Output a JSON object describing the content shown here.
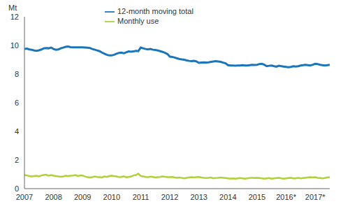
{
  "chart_data": {
    "type": "line",
    "y_label": "Mt",
    "categories": [
      "2007",
      null,
      null,
      null,
      null,
      null,
      null,
      null,
      null,
      null,
      null,
      null,
      "2008",
      null,
      null,
      null,
      null,
      null,
      null,
      null,
      null,
      null,
      null,
      null,
      "2009",
      null,
      null,
      null,
      null,
      null,
      null,
      null,
      null,
      null,
      null,
      null,
      "2010",
      null,
      null,
      null,
      null,
      null,
      null,
      null,
      null,
      null,
      null,
      null,
      "2011",
      null,
      null,
      null,
      null,
      null,
      null,
      null,
      null,
      null,
      null,
      null,
      "2012",
      null,
      null,
      null,
      null,
      null,
      null,
      null,
      null,
      null,
      null,
      null,
      "2013",
      null,
      null,
      null,
      null,
      null,
      null,
      null,
      null,
      null,
      null,
      null,
      "2014",
      null,
      null,
      null,
      null,
      null,
      null,
      null,
      null,
      null,
      null,
      null,
      "2015",
      null,
      null,
      null,
      null,
      null,
      null,
      null,
      null,
      null,
      null,
      null,
      "2016*",
      null,
      null,
      null,
      null,
      null,
      null,
      null,
      null,
      null,
      null,
      null,
      "2017*",
      null,
      null,
      null,
      null,
      null,
      null
    ],
    "series": [
      {
        "name": "12-month moving total",
        "color": "#1b75bb",
        "values": [
          9.75,
          9.78,
          9.72,
          9.7,
          9.65,
          9.62,
          9.66,
          9.72,
          9.8,
          9.82,
          9.8,
          9.85,
          9.75,
          9.7,
          9.72,
          9.8,
          9.85,
          9.9,
          9.92,
          9.88,
          9.86,
          9.86,
          9.87,
          9.86,
          9.86,
          9.85,
          9.84,
          9.82,
          9.75,
          9.7,
          9.65,
          9.6,
          9.5,
          9.42,
          9.35,
          9.3,
          9.3,
          9.35,
          9.42,
          9.48,
          9.5,
          9.45,
          9.52,
          9.58,
          9.56,
          9.58,
          9.62,
          9.6,
          9.85,
          9.8,
          9.75,
          9.72,
          9.75,
          9.7,
          9.68,
          9.65,
          9.6,
          9.55,
          9.48,
          9.4,
          9.22,
          9.2,
          9.15,
          9.1,
          9.05,
          9.02,
          9.0,
          8.95,
          8.92,
          8.9,
          8.92,
          8.88,
          8.78,
          8.8,
          8.82,
          8.8,
          8.82,
          8.85,
          8.88,
          8.9,
          8.88,
          8.85,
          8.8,
          8.75,
          8.62,
          8.6,
          8.6,
          8.58,
          8.6,
          8.6,
          8.62,
          8.6,
          8.6,
          8.62,
          8.65,
          8.63,
          8.65,
          8.7,
          8.72,
          8.65,
          8.55,
          8.58,
          8.6,
          8.55,
          8.52,
          8.58,
          8.55,
          8.52,
          8.5,
          8.48,
          8.5,
          8.55,
          8.52,
          8.55,
          8.6,
          8.62,
          8.65,
          8.62,
          8.6,
          8.65,
          8.72,
          8.7,
          8.65,
          8.62,
          8.6,
          8.62,
          8.65
        ]
      },
      {
        "name": "Monthly use",
        "color": "#add136",
        "values": [
          0.95,
          0.92,
          0.88,
          0.85,
          0.88,
          0.9,
          0.86,
          0.92,
          0.95,
          0.97,
          0.9,
          0.95,
          0.9,
          0.88,
          0.85,
          0.83,
          0.85,
          0.9,
          0.88,
          0.9,
          0.92,
          0.95,
          0.88,
          0.92,
          0.92,
          0.85,
          0.8,
          0.78,
          0.8,
          0.85,
          0.82,
          0.8,
          0.78,
          0.85,
          0.82,
          0.88,
          0.9,
          0.88,
          0.85,
          0.8,
          0.82,
          0.86,
          0.8,
          0.82,
          0.85,
          0.92,
          0.95,
          1.05,
          0.88,
          0.85,
          0.82,
          0.8,
          0.84,
          0.82,
          0.78,
          0.8,
          0.82,
          0.85,
          0.83,
          0.8,
          0.8,
          0.82,
          0.78,
          0.76,
          0.78,
          0.75,
          0.72,
          0.76,
          0.78,
          0.8,
          0.78,
          0.8,
          0.82,
          0.78,
          0.76,
          0.75,
          0.76,
          0.78,
          0.72,
          0.75,
          0.76,
          0.78,
          0.76,
          0.74,
          0.72,
          0.7,
          0.72,
          0.7,
          0.72,
          0.74,
          0.72,
          0.7,
          0.72,
          0.75,
          0.76,
          0.74,
          0.76,
          0.74,
          0.72,
          0.7,
          0.72,
          0.74,
          0.7,
          0.72,
          0.74,
          0.76,
          0.72,
          0.7,
          0.72,
          0.74,
          0.76,
          0.72,
          0.72,
          0.75,
          0.72,
          0.74,
          0.76,
          0.78,
          0.8,
          0.78,
          0.8,
          0.76,
          0.74,
          0.72,
          0.74,
          0.78,
          0.8
        ]
      }
    ],
    "ylim": [
      0,
      12
    ],
    "yticks": [
      0,
      2,
      4,
      6,
      8,
      10,
      12
    ],
    "grid": false,
    "legend": "top"
  }
}
